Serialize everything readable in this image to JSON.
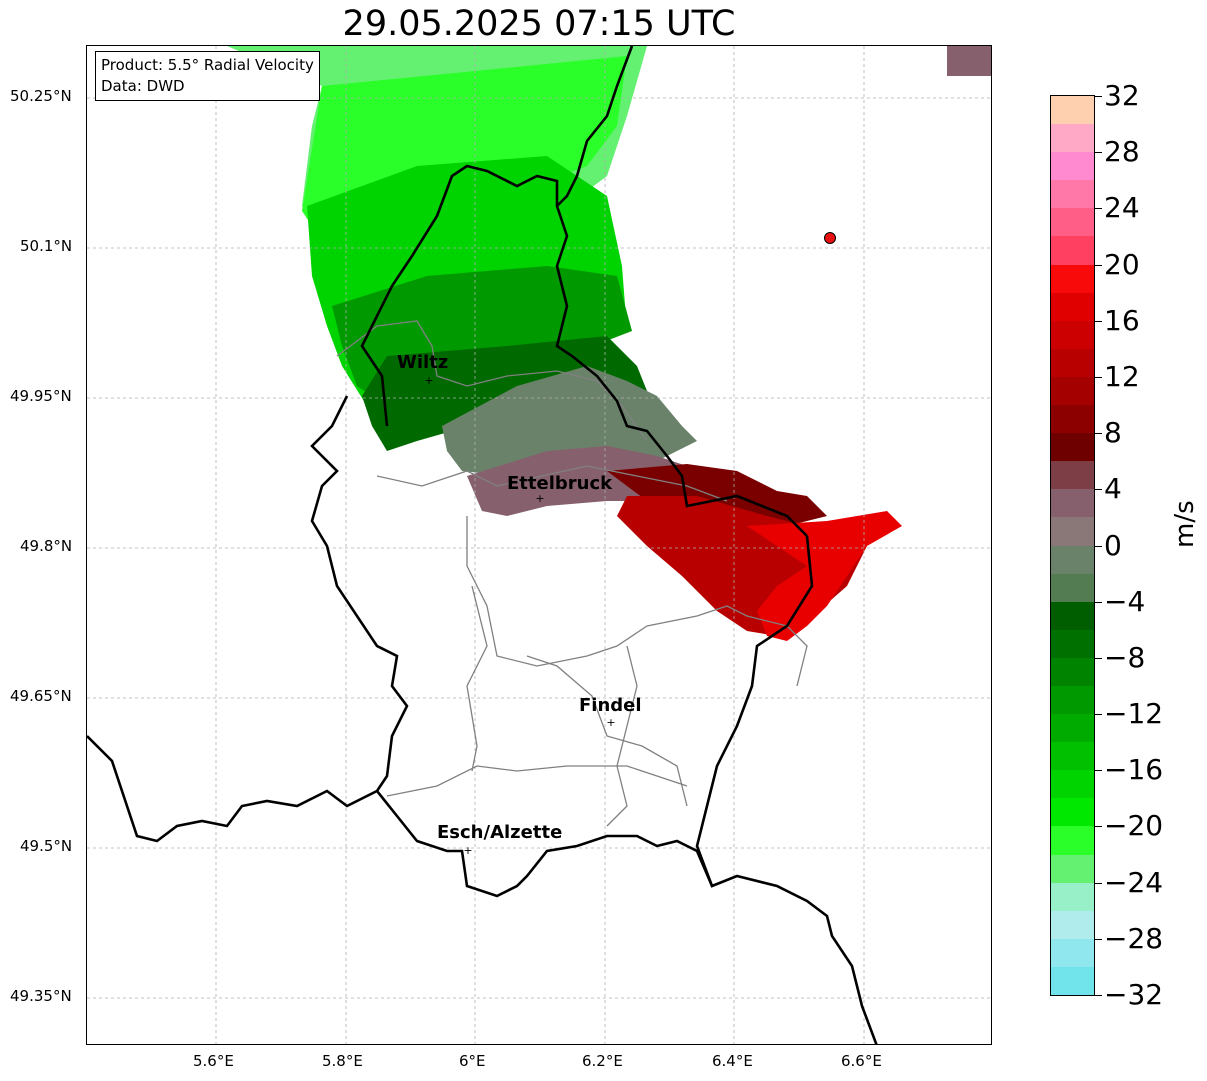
{
  "title": "29.05.2025 07:15 UTC",
  "info": {
    "product": "Product: 5.5° Radial Velocity",
    "source": "Data: DWD"
  },
  "axes": {
    "lon_ticks": [
      "5.6°E",
      "5.8°E",
      "6°E",
      "6.2°E",
      "6.4°E",
      "6.6°E"
    ],
    "lat_ticks": [
      "50.25°N",
      "50.1°N",
      "49.95°N",
      "49.8°N",
      "49.65°N",
      "49.5°N",
      "49.35°N"
    ],
    "grid": true
  },
  "places": [
    {
      "name": "Wiltz"
    },
    {
      "name": "Ettelbruck"
    },
    {
      "name": "Findel"
    },
    {
      "name": "Esch/Alzette"
    }
  ],
  "radar_site": {
    "color": "#e81010"
  },
  "colorbar": {
    "label": "m/s",
    "ticks": [
      "32",
      "28",
      "24",
      "20",
      "16",
      "12",
      "8",
      "4",
      "0",
      "−4",
      "−8",
      "−12",
      "−16",
      "−20",
      "−24",
      "−28",
      "−32"
    ],
    "colors_top_to_bottom": [
      "#ffd0b0",
      "#ffa9c6",
      "#ff8ad0",
      "#ff78a8",
      "#ff5f86",
      "#ff4060",
      "#f80a0a",
      "#e00000",
      "#cc0000",
      "#b80000",
      "#a50000",
      "#8c0000",
      "#6f0000",
      "#7e3e46",
      "#86606d",
      "#8a7878",
      "#6a826a",
      "#537c53",
      "#005e00",
      "#007000",
      "#008400",
      "#009900",
      "#00ab00",
      "#00c000",
      "#00d400",
      "#00e800",
      "#2aff2a",
      "#64f070",
      "#98f0c8",
      "#b0ecec",
      "#90e8ee",
      "#70e4ea"
    ]
  }
}
